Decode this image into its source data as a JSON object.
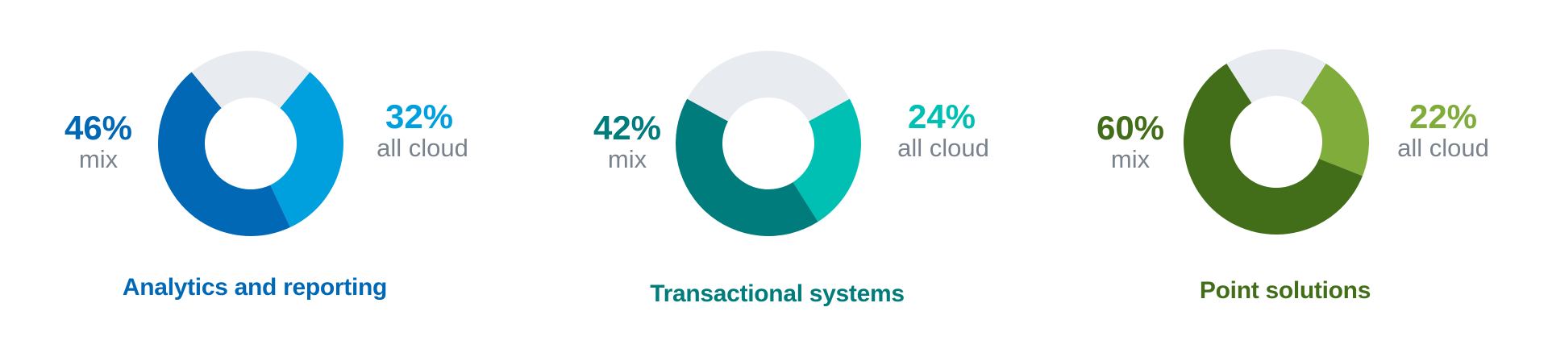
{
  "chart_data": [
    {
      "type": "pie",
      "title": "Analytics and reporting",
      "slices": [
        {
          "label": "mix",
          "value": 46,
          "display": "46%",
          "color": "#0068b5"
        },
        {
          "label": "all cloud",
          "value": 32,
          "display": "32%",
          "color": "#00a0df"
        },
        {
          "label": "",
          "value": 22,
          "color": "#e8ebf0"
        }
      ]
    },
    {
      "type": "pie",
      "title": "Transactional systems",
      "slices": [
        {
          "label": "mix",
          "value": 42,
          "display": "42%",
          "color": "#007c7c"
        },
        {
          "label": "all cloud",
          "value": 24,
          "display": "24%",
          "color": "#00bfb3"
        },
        {
          "label": "",
          "value": 34,
          "color": "#e8ebf0"
        }
      ]
    },
    {
      "type": "pie",
      "title": "Point solutions",
      "slices": [
        {
          "label": "mix",
          "value": 60,
          "display": "60%",
          "color": "#426e1a"
        },
        {
          "label": "all cloud",
          "value": 22,
          "display": "22%",
          "color": "#7fac3a"
        },
        {
          "label": "",
          "value": 18,
          "color": "#e8ebf0"
        }
      ]
    }
  ]
}
